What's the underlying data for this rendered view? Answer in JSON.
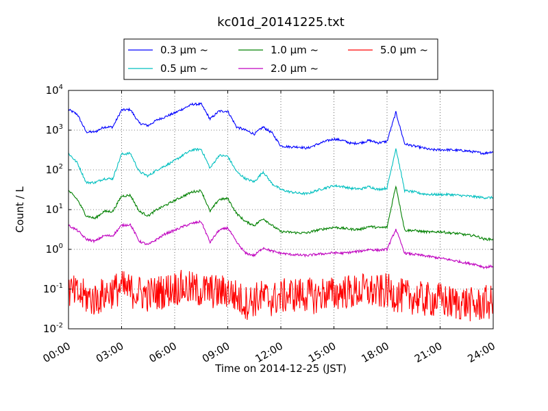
{
  "chart_data": {
    "type": "line",
    "title": "kc01d_20141225.txt",
    "xlabel": "Time on 2014-12-25 (JST)",
    "ylabel": "Count / L",
    "yscale": "log",
    "xlim": [
      "00:00",
      "24:00"
    ],
    "ylim": [
      0.01,
      10000
    ],
    "grid": true,
    "legend_position": "top-center, above plot",
    "x_ticks": [
      "00:00",
      "03:00",
      "06:00",
      "09:00",
      "12:00",
      "15:00",
      "18:00",
      "21:00",
      "24:00"
    ],
    "y_ticks": [
      {
        "base": "10",
        "exp": "-2"
      },
      {
        "base": "10",
        "exp": "-1"
      },
      {
        "base": "10",
        "exp": "0"
      },
      {
        "base": "10",
        "exp": "1"
      },
      {
        "base": "10",
        "exp": "2"
      },
      {
        "base": "10",
        "exp": "3"
      },
      {
        "base": "10",
        "exp": "4"
      }
    ],
    "x": [
      "00:00",
      "00:30",
      "01:00",
      "01:30",
      "02:00",
      "02:30",
      "03:00",
      "03:30",
      "04:00",
      "04:30",
      "05:00",
      "05:30",
      "06:00",
      "06:30",
      "07:00",
      "07:30",
      "08:00",
      "08:30",
      "09:00",
      "09:30",
      "10:00",
      "10:30",
      "11:00",
      "11:30",
      "12:00",
      "12:30",
      "13:00",
      "13:30",
      "14:00",
      "14:30",
      "15:00",
      "15:30",
      "16:00",
      "16:30",
      "17:00",
      "17:30",
      "18:00",
      "18:30",
      "19:00",
      "19:30",
      "20:00",
      "20:30",
      "21:00",
      "21:30",
      "22:00",
      "22:30",
      "23:00",
      "23:30",
      "24:00"
    ],
    "series": [
      {
        "name": "0.3",
        "legend_label": "0.3 μm ~",
        "color": "#0000ff",
        "values": [
          3300,
          2500,
          900,
          900,
          1200,
          1200,
          3200,
          3300,
          1500,
          1300,
          1800,
          2200,
          2700,
          3500,
          4500,
          4500,
          1900,
          3000,
          3000,
          1200,
          1000,
          800,
          1200,
          850,
          400,
          380,
          380,
          350,
          430,
          520,
          600,
          550,
          460,
          480,
          550,
          480,
          520,
          2800,
          450,
          400,
          360,
          320,
          320,
          320,
          310,
          300,
          280,
          260,
          290
        ],
        "spikes": []
      },
      {
        "name": "0.5",
        "legend_label": "0.5 μm ~",
        "color": "#00bfbf",
        "values": [
          260,
          150,
          48,
          48,
          60,
          60,
          250,
          260,
          90,
          70,
          100,
          130,
          170,
          240,
          320,
          330,
          110,
          230,
          220,
          90,
          60,
          50,
          90,
          45,
          32,
          28,
          26,
          25,
          30,
          35,
          40,
          38,
          34,
          33,
          38,
          32,
          35,
          350,
          30,
          28,
          25,
          24,
          24,
          24,
          23,
          22,
          21,
          20,
          20
        ],
        "spikes": []
      },
      {
        "name": "1.0",
        "legend_label": "1.0 μm ~",
        "color": "#008000",
        "values": [
          30,
          18,
          7,
          6,
          9,
          9,
          22,
          23,
          9,
          7,
          10,
          13,
          17,
          22,
          28,
          30,
          9,
          18,
          19,
          8,
          5,
          4,
          6,
          4,
          2.8,
          2.7,
          2.6,
          2.6,
          3,
          3.3,
          3.6,
          3.4,
          3.2,
          3.2,
          3.8,
          3.5,
          3.6,
          40,
          3,
          3,
          2.8,
          2.7,
          2.8,
          2.6,
          2.5,
          2.3,
          2.2,
          1.8,
          1.8
        ],
        "spikes": []
      },
      {
        "name": "2.0",
        "legend_label": "2.0 μm ~",
        "color": "#bf00bf",
        "values": [
          4,
          3,
          1.8,
          1.6,
          2.2,
          2.2,
          4,
          4.2,
          1.6,
          1.3,
          1.8,
          2.5,
          3,
          3.8,
          4.5,
          5,
          1.5,
          3,
          3.5,
          1.5,
          0.8,
          0.7,
          1.1,
          0.9,
          0.8,
          0.75,
          0.72,
          0.7,
          0.75,
          0.78,
          0.82,
          0.8,
          0.85,
          0.9,
          1,
          0.95,
          1,
          3.2,
          0.8,
          0.75,
          0.7,
          0.65,
          0.6,
          0.55,
          0.5,
          0.45,
          0.42,
          0.35,
          0.38
        ],
        "spikes": []
      },
      {
        "name": "5.0",
        "legend_label": "5.0 μm ~",
        "color": "#ff0000",
        "values": [
          0.1,
          0.08,
          0.07,
          0.06,
          0.08,
          0.1,
          0.12,
          0.1,
          0.09,
          0.08,
          0.09,
          0.1,
          0.12,
          0.12,
          0.11,
          0.1,
          0.1,
          0.09,
          0.1,
          0.07,
          0.05,
          0.06,
          0.07,
          0.06,
          0.07,
          0.08,
          0.08,
          0.08,
          0.07,
          0.09,
          0.08,
          0.1,
          0.09,
          0.1,
          0.1,
          0.09,
          0.1,
          0.08,
          0.07,
          0.07,
          0.06,
          0.06,
          0.06,
          0.05,
          0.05,
          0.05,
          0.04,
          0.05,
          0.05
        ],
        "noisy": true
      }
    ]
  }
}
